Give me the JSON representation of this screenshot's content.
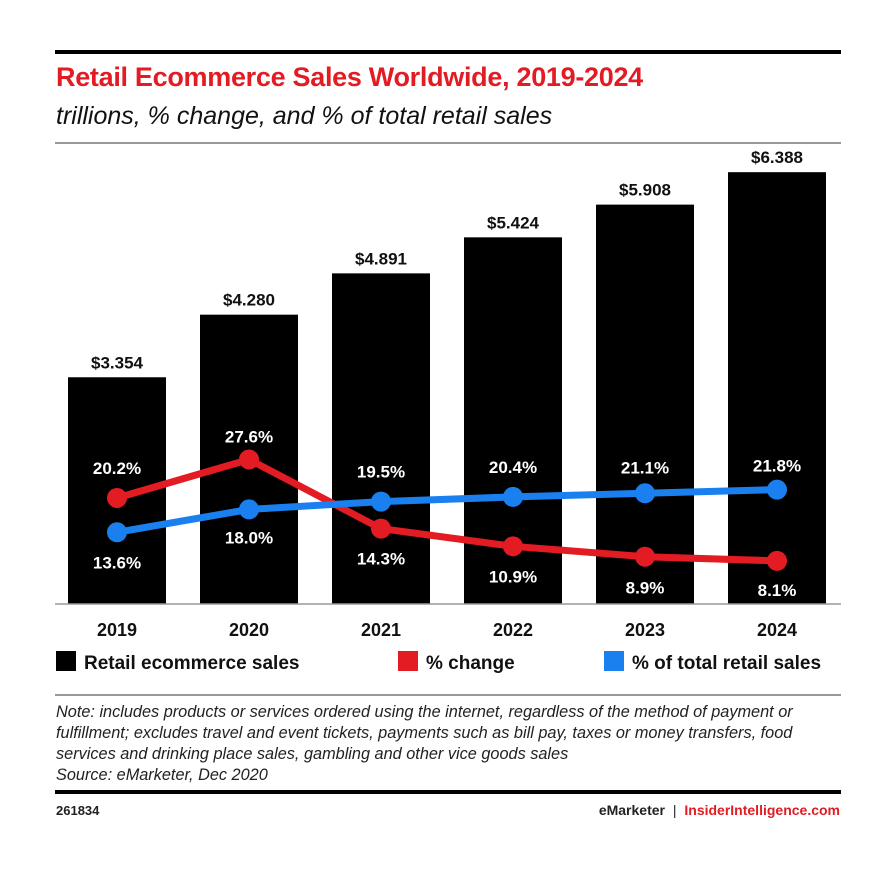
{
  "chart_data": {
    "type": "bar",
    "title": "Retail Ecommerce Sales Worldwide, 2019-2024",
    "subtitle": "trillions, % change, and % of total retail sales",
    "categories": [
      "2019",
      "2020",
      "2021",
      "2022",
      "2023",
      "2024"
    ],
    "series": [
      {
        "name": "Retail ecommerce sales",
        "type": "bar",
        "color": "#000000",
        "values": [
          3.354,
          4.28,
          4.891,
          5.424,
          5.908,
          6.388
        ],
        "labels": [
          "$3.354",
          "$4.280",
          "$4.891",
          "$5.424",
          "$5.908",
          "$6.388"
        ]
      },
      {
        "name": "% change",
        "type": "line",
        "color": "#e31b23",
        "values": [
          20.2,
          27.6,
          14.3,
          10.9,
          8.9,
          8.1
        ],
        "labels": [
          "20.2%",
          "27.6%",
          "14.3%",
          "10.9%",
          "8.9%",
          "8.1%"
        ]
      },
      {
        "name": "% of total retail sales",
        "type": "line",
        "color": "#1a80f0",
        "values": [
          13.6,
          18.0,
          19.5,
          20.4,
          21.1,
          21.8
        ],
        "labels": [
          "13.6%",
          "18.0%",
          "19.5%",
          "20.4%",
          "21.1%",
          "21.8%"
        ]
      }
    ],
    "xlabel": "",
    "ylabel": "",
    "grid": false,
    "legend": "bottom"
  },
  "note": "Note: includes products or services ordered using the internet, regardless of the method of payment or fulfillment; excludes travel and event tickets, payments such as bill pay, taxes or money transfers, food services and drinking place sales, gambling and other vice goods sales",
  "source": "Source: eMarketer, Dec 2020",
  "footer": {
    "id": "261834",
    "brand1": "eMarketer",
    "sep": "|",
    "brand2": "InsiderIntelligence.com",
    "brand_color": "#e31b23"
  }
}
